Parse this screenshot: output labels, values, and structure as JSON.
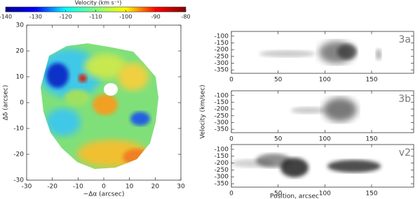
{
  "chart_data": [
    {
      "type": "heatmap",
      "cmap": "jet",
      "colorbar": {
        "title": "Velocity  (km s⁻¹)",
        "lim": [
          -140,
          -80
        ],
        "ticks": [
          -140,
          -130,
          -120,
          -110,
          -100,
          -90,
          -80
        ]
      },
      "xlabel": "−Δα (arcsec)",
      "ylabel": "Δδ (arcsec)",
      "xlim": [
        -30,
        30
      ],
      "ylim": [
        -30,
        30
      ],
      "xticks": [
        -30,
        -20,
        -10,
        0,
        10,
        20,
        30
      ],
      "yticks": [
        -30,
        -20,
        -10,
        0,
        10,
        20,
        30
      ]
    },
    {
      "type": "pv",
      "label": "3a",
      "xlim": [
        0,
        195
      ],
      "ylim": [
        -375,
        -65
      ],
      "xticks": [
        0,
        50,
        100,
        150
      ],
      "yticks": [
        -100,
        -150,
        -200,
        -250,
        -300,
        -350
      ]
    },
    {
      "type": "pv",
      "label": "3b",
      "ylabel": "Velocity (km/sec)",
      "xlim": [
        0,
        195
      ],
      "ylim": [
        -375,
        -65
      ],
      "xticks": [
        0,
        50,
        100,
        150
      ],
      "yticks": [
        -100,
        -150,
        -200,
        -250,
        -300,
        -350
      ]
    },
    {
      "type": "pv",
      "label": "v2",
      "xlabel": "Position, arcsec",
      "xlim": [
        0,
        195
      ],
      "ylim": [
        -375,
        -65
      ],
      "xticks": [
        0,
        50,
        100,
        150
      ],
      "yticks": [
        -100,
        -150,
        -200,
        -250,
        -300,
        -350
      ]
    }
  ]
}
